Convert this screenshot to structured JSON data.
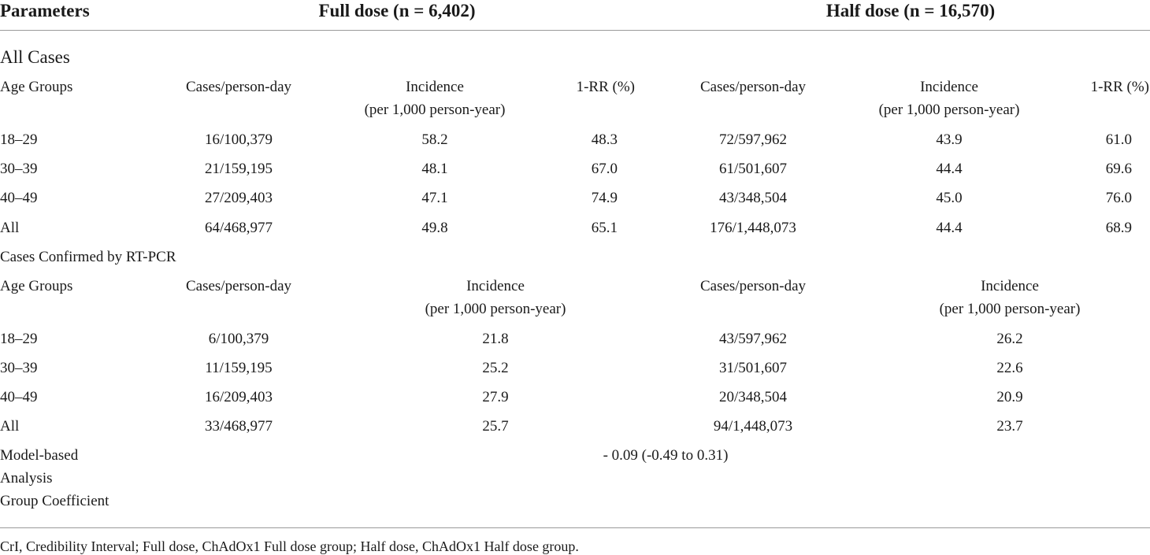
{
  "header": {
    "parameters": "Parameters",
    "full_dose": "Full dose (n = 6,402)",
    "half_dose": "Half dose (n = 16,570)"
  },
  "all_cases": {
    "title": "All Cases",
    "columns": {
      "age_groups": "Age Groups",
      "cases_full": "Cases/person-day",
      "incidence_full_1": "Incidence",
      "incidence_full_2": "(per 1,000 person-year)",
      "rr_full": "1-RR (%)",
      "cases_half": "Cases/person-day",
      "incidence_half_1": "Incidence",
      "incidence_half_2": "(per 1,000 person-year)",
      "rr_half": "1-RR (%)"
    },
    "rows": [
      {
        "age": "18–29",
        "full_cases": "16/100,379",
        "full_inc": "58.2",
        "full_rr": "48.3",
        "half_cases": "72/597,962",
        "half_inc": "43.9",
        "half_rr": "61.0"
      },
      {
        "age": "30–39",
        "full_cases": "21/159,195",
        "full_inc": "48.1",
        "full_rr": "67.0",
        "half_cases": "61/501,607",
        "half_inc": "44.4",
        "half_rr": "69.6"
      },
      {
        "age": "40–49",
        "full_cases": "27/209,403",
        "full_inc": "47.1",
        "full_rr": "74.9",
        "half_cases": "43/348,504",
        "half_inc": "45.0",
        "half_rr": "76.0"
      },
      {
        "age": "All",
        "full_cases": "64/468,977",
        "full_inc": "49.8",
        "full_rr": "65.1",
        "half_cases": "176/1,448,073",
        "half_inc": "44.4",
        "half_rr": "68.9"
      }
    ]
  },
  "pcr_cases": {
    "title": "Cases Confirmed by RT-PCR",
    "columns": {
      "age_groups": "Age Groups",
      "cases_full": "Cases/person-day",
      "incidence_full_1": "Incidence",
      "incidence_full_2": "(per 1,000 person-year)",
      "cases_half": "Cases/person-day",
      "incidence_half_1": "Incidence",
      "incidence_half_2": "(per 1,000 person-year)"
    },
    "rows": [
      {
        "age": "18–29",
        "full_cases": "6/100,379",
        "full_inc": "21.8",
        "half_cases": "43/597,962",
        "half_inc": "26.2"
      },
      {
        "age": "30–39",
        "full_cases": "11/159,195",
        "full_inc": "25.2",
        "half_cases": "31/501,607",
        "half_inc": "22.6"
      },
      {
        "age": "40–49",
        "full_cases": "16/209,403",
        "full_inc": "27.9",
        "half_cases": "20/348,504",
        "half_inc": "20.9"
      },
      {
        "age": "All",
        "full_cases": "33/468,977",
        "full_inc": "25.7",
        "half_cases": "94/1,448,073",
        "half_inc": "23.7"
      }
    ]
  },
  "model": {
    "label_1": "Model-based",
    "label_2": "Analysis",
    "label_3": "Group Coefficient",
    "value": "- 0.09 (-0.49 to 0.31)"
  },
  "footnote": "CrI, Credibility Interval; Full dose, ChAdOx1 Full dose group; Half dose, ChAdOx1 Half dose group."
}
